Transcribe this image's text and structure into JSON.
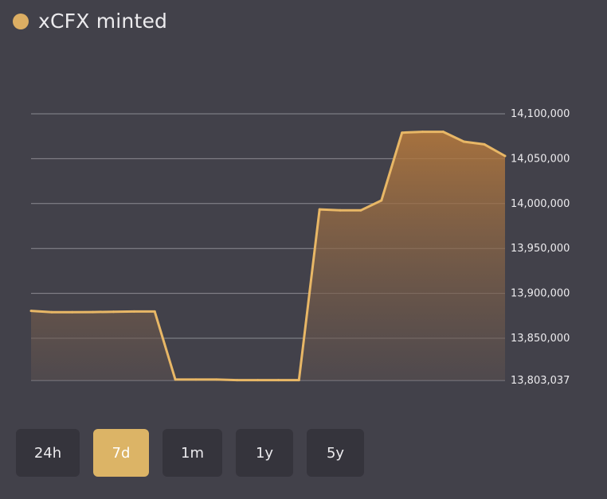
{
  "header": {
    "title": "xCFX minted",
    "legend_color": "#dcae63"
  },
  "range_selector": {
    "buttons": [
      {
        "label": "24h",
        "active": false
      },
      {
        "label": "7d",
        "active": true
      },
      {
        "label": "1m",
        "active": false
      },
      {
        "label": "1y",
        "active": false
      },
      {
        "label": "5y",
        "active": false
      }
    ],
    "active_color": "#dcb466"
  },
  "chart_data": {
    "type": "area",
    "series": [
      {
        "values": [
          13880500,
          13879000,
          13879000,
          13879200,
          13879500,
          13879800,
          13879800,
          13804000,
          13804000,
          13804000,
          13803400,
          13803400,
          13803400,
          13803400,
          13993500,
          13992500,
          13992500,
          14003500,
          14079000,
          14080000,
          14080000,
          14069000,
          14066000,
          14053000
        ]
      }
    ],
    "y_ticks": [
      {
        "value": 14100000,
        "label": "14,100,000"
      },
      {
        "value": 14050000,
        "label": "14,050,000"
      },
      {
        "value": 14000000,
        "label": "14,000,000"
      },
      {
        "value": 13950000,
        "label": "13,950,000"
      },
      {
        "value": 13900000,
        "label": "13,900,000"
      },
      {
        "value": 13850000,
        "label": "13,850,000"
      },
      {
        "value": 13803037,
        "label": "13,803,037"
      }
    ],
    "ylim": [
      13803037,
      14100000
    ],
    "y_axis_position": "right",
    "grid": true,
    "line_color": "#e8b766",
    "fill_top_color": "#b87a3c",
    "fill_bottom_color": "#5a5050"
  }
}
